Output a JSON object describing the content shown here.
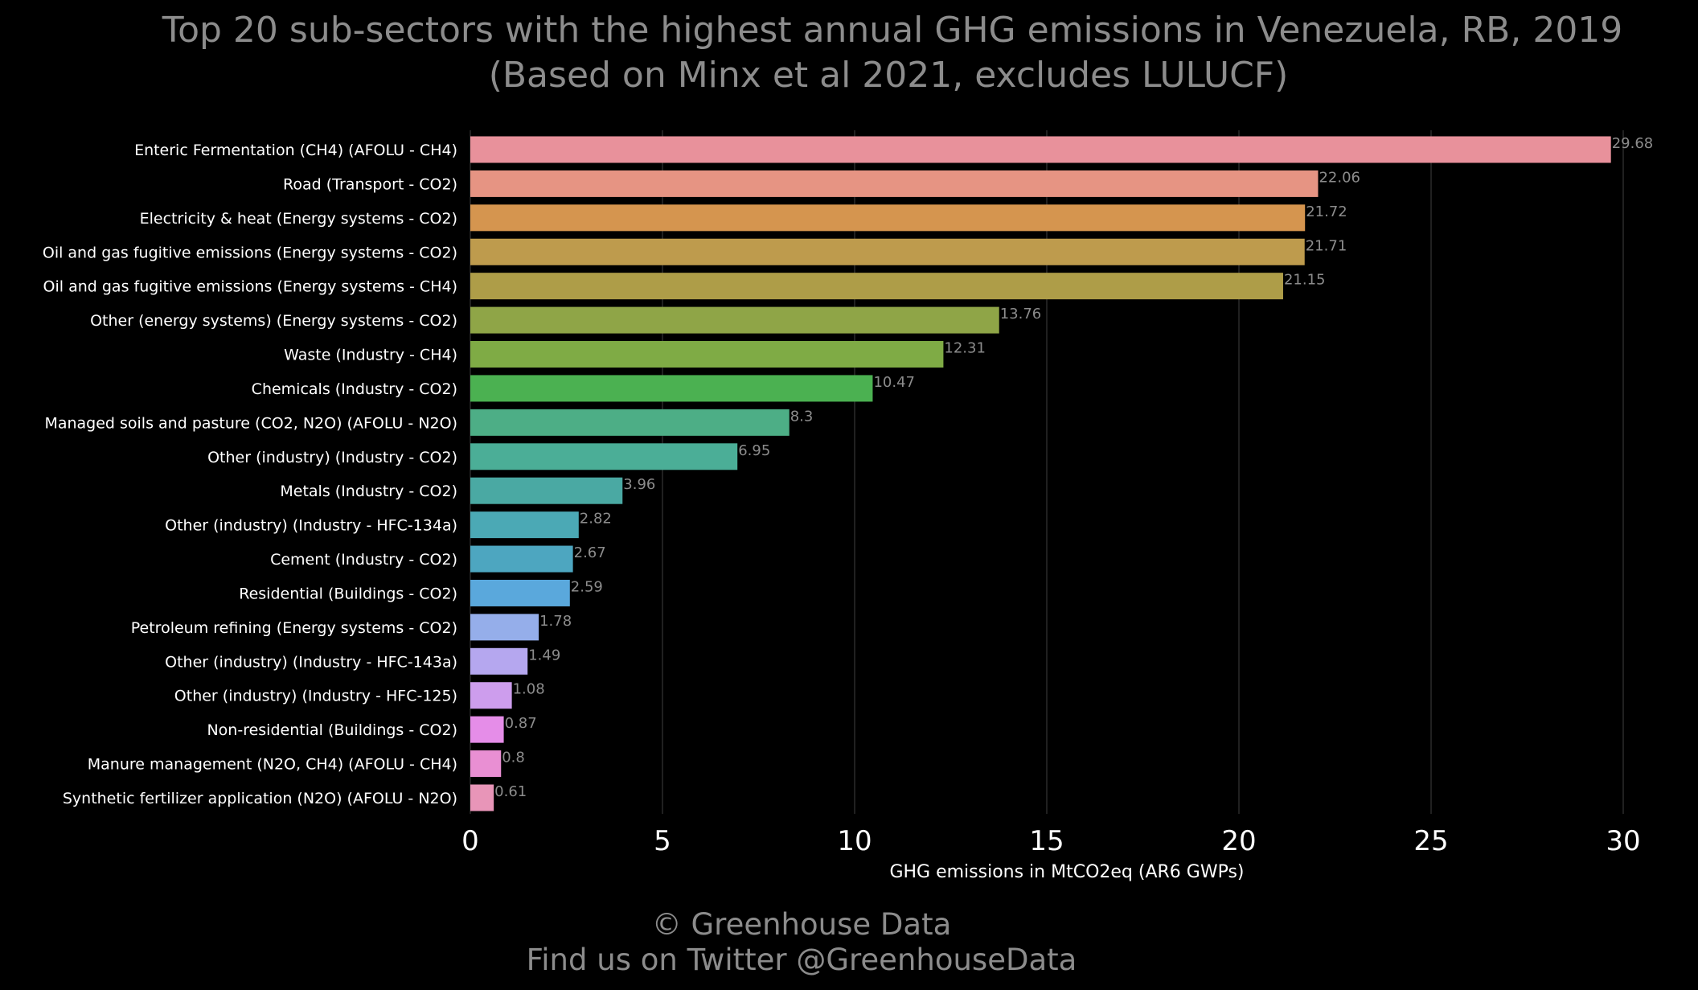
{
  "chart_data": {
    "type": "bar",
    "orientation": "horizontal",
    "title": "Top 20 sub-sectors with the highest annual GHG emissions in Venezuela, RB, 2019",
    "subtitle": "(Based on Minx et al 2021, excludes LULUCF)",
    "xlabel": "GHG emissions in MtCO2eq (AR6 GWPs)",
    "ylabel": "",
    "xlim": [
      0,
      30
    ],
    "xticks": [
      0,
      5,
      10,
      15,
      20,
      25,
      30
    ],
    "grid": "vertical",
    "categories": [
      "Enteric Fermentation (CH4) (AFOLU - CH4)",
      "Road (Transport - CO2)",
      "Electricity & heat (Energy systems - CO2)",
      "Oil and gas fugitive emissions (Energy systems - CO2)",
      "Oil and gas fugitive emissions (Energy systems - CH4)",
      "Other (energy systems) (Energy systems - CO2)",
      "Waste (Industry - CH4)",
      "Chemicals (Industry - CO2)",
      "Managed soils and pasture (CO2, N2O) (AFOLU - N2O)",
      "Other (industry) (Industry - CO2)",
      "Metals (Industry - CO2)",
      "Other (industry) (Industry - HFC-134a)",
      "Cement (Industry - CO2)",
      "Residential (Buildings - CO2)",
      "Petroleum refining (Energy systems - CO2)",
      "Other (industry) (Industry - HFC-143a)",
      "Other (industry) (Industry - HFC-125)",
      "Non-residential (Buildings - CO2)",
      "Manure management (N2O, CH4) (AFOLU - CH4)",
      "Synthetic fertilizer application (N2O) (AFOLU - N2O)"
    ],
    "values": [
      29.68,
      22.06,
      21.72,
      21.71,
      21.15,
      13.76,
      12.31,
      10.47,
      8.3,
      6.95,
      3.96,
      2.82,
      2.67,
      2.59,
      1.78,
      1.49,
      1.08,
      0.87,
      0.8,
      0.61
    ],
    "value_labels": [
      "29.68",
      "22.06",
      "21.72",
      "21.71",
      "21.15",
      "13.76",
      "12.31",
      "10.47",
      "8.3",
      "6.95",
      "3.96",
      "2.82",
      "2.67",
      "2.59",
      "1.78",
      "1.49",
      "1.08",
      "0.87",
      "0.8",
      "0.61"
    ],
    "colors": [
      "#e8919b",
      "#e69483",
      "#d5954f",
      "#be9b4d",
      "#ae9d48",
      "#8fa547",
      "#7fab45",
      "#4bb151",
      "#4dae86",
      "#4bae97",
      "#4aa9a3",
      "#4ba9b5",
      "#4da6c0",
      "#5aa8dc",
      "#95aeea",
      "#b5a7ef",
      "#cd9ded",
      "#e58de8",
      "#e98fd3",
      "#e895b8"
    ]
  },
  "credits": {
    "line1": "© Greenhouse Data",
    "line2": "Find us on Twitter @GreenhouseData"
  }
}
